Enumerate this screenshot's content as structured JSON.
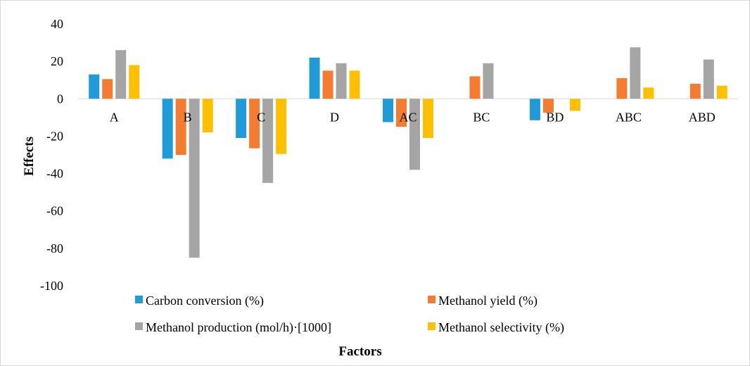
{
  "chart_data": {
    "type": "bar",
    "title": "",
    "xlabel": "Factors",
    "ylabel": "Effects",
    "ylim": [
      -100,
      40
    ],
    "yticks": [
      40,
      20,
      0,
      -20,
      -40,
      -60,
      -80,
      -100
    ],
    "categories": [
      "A",
      "B",
      "C",
      "D",
      "AC",
      "BC",
      "BD",
      "ABC",
      "ABD"
    ],
    "grid": false,
    "legend_position": "bottom",
    "series": [
      {
        "name": "Carbon conversion (%)",
        "color": "#1f9bd7",
        "values": [
          13,
          -32,
          -21,
          22,
          -12.5,
          null,
          -11.5,
          null,
          null
        ]
      },
      {
        "name": "Methanol yield (%)",
        "color": "#f47c30",
        "values": [
          10.5,
          -30,
          -26.5,
          15,
          -15,
          12,
          -7.5,
          11,
          8
        ]
      },
      {
        "name": "Methanol production (mol/h)·[1000]",
        "color": "#a5a5a5",
        "values": [
          26,
          -85,
          -45,
          19,
          -38,
          19,
          null,
          27.5,
          21
        ]
      },
      {
        "name": "Methanol selectivity (%)",
        "color": "#ffc000",
        "values": [
          18,
          -18,
          -29.5,
          15,
          -21,
          null,
          -6.5,
          6,
          7
        ]
      }
    ]
  }
}
